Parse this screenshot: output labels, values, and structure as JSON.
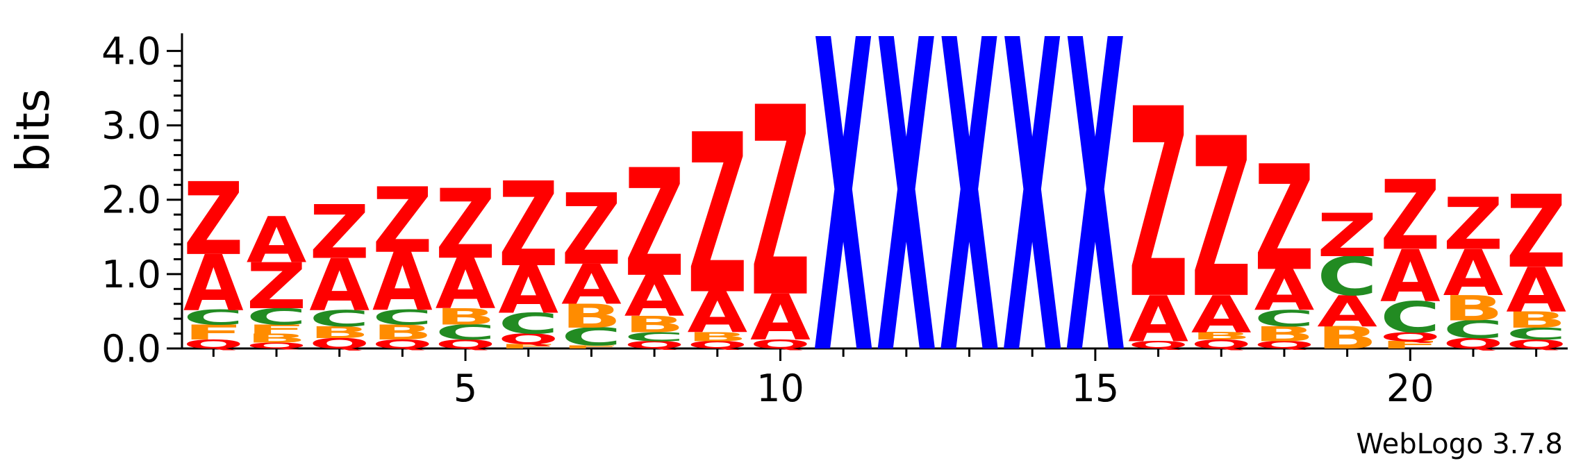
{
  "chart_data": {
    "type": "sequence-logo",
    "ylabel": "bits",
    "ylim": [
      0,
      4.2
    ],
    "yticks": [
      "0.0",
      "1.0",
      "2.0",
      "3.0",
      "4.0"
    ],
    "xticks": [
      5,
      10,
      15,
      20
    ],
    "footer": "WebLogo 3.7.8",
    "colors": {
      "Z": "#ff0000",
      "A": "#ff0000",
      "Q": "#ff0000",
      "X": "#0000ff",
      "C": "#228b22",
      "B": "#ff8c00",
      "F": "#ff8c00"
    },
    "positions": [
      {
        "pos": 1,
        "stack": [
          [
            "Q",
            0.12
          ],
          [
            "F",
            0.2
          ],
          [
            "C",
            0.2
          ],
          [
            "A",
            0.75
          ],
          [
            "Z",
            0.98
          ]
        ]
      },
      {
        "pos": 2,
        "stack": [
          [
            "Q",
            0.08
          ],
          [
            "B",
            0.12
          ],
          [
            "F",
            0.12
          ],
          [
            "C",
            0.22
          ],
          [
            "Z",
            0.62
          ],
          [
            "A",
            0.62
          ]
        ]
      },
      {
        "pos": 3,
        "stack": [
          [
            "Q",
            0.14
          ],
          [
            "B",
            0.16
          ],
          [
            "C",
            0.22
          ],
          [
            "A",
            0.7
          ],
          [
            "Z",
            0.72
          ]
        ]
      },
      {
        "pos": 4,
        "stack": [
          [
            "Q",
            0.12
          ],
          [
            "B",
            0.2
          ],
          [
            "C",
            0.2
          ],
          [
            "A",
            0.78
          ],
          [
            "Z",
            0.88
          ]
        ]
      },
      {
        "pos": 5,
        "stack": [
          [
            "Q",
            0.12
          ],
          [
            "C",
            0.2
          ],
          [
            "B",
            0.22
          ],
          [
            "A",
            0.68
          ],
          [
            "Z",
            0.94
          ]
        ]
      },
      {
        "pos": 6,
        "stack": [
          [
            "F",
            0.06
          ],
          [
            "Q",
            0.14
          ],
          [
            "C",
            0.28
          ],
          [
            "A",
            0.64
          ],
          [
            "Z",
            1.14
          ]
        ]
      },
      {
        "pos": 7,
        "stack": [
          [
            "F",
            0.04
          ],
          [
            "C",
            0.24
          ],
          [
            "B",
            0.32
          ],
          [
            "A",
            0.54
          ],
          [
            "Z",
            0.96
          ]
        ]
      },
      {
        "pos": 8,
        "stack": [
          [
            "Q",
            0.1
          ],
          [
            "C",
            0.12
          ],
          [
            "B",
            0.22
          ],
          [
            "A",
            0.55
          ],
          [
            "Z",
            1.45
          ]
        ]
      },
      {
        "pos": 9,
        "stack": [
          [
            "Q",
            0.1
          ],
          [
            "B",
            0.12
          ],
          [
            "A",
            0.55
          ],
          [
            "Z",
            2.15
          ]
        ]
      },
      {
        "pos": 10,
        "stack": [
          [
            "Q",
            0.12
          ],
          [
            "A",
            0.62
          ],
          [
            "Z",
            2.55
          ]
        ]
      },
      {
        "pos": 11,
        "stack": [
          [
            "X",
            4.2
          ]
        ]
      },
      {
        "pos": 12,
        "stack": [
          [
            "X",
            4.2
          ]
        ]
      },
      {
        "pos": 13,
        "stack": [
          [
            "X",
            4.2
          ]
        ]
      },
      {
        "pos": 14,
        "stack": [
          [
            "X",
            4.2
          ]
        ]
      },
      {
        "pos": 15,
        "stack": [
          [
            "X",
            4.2
          ]
        ]
      },
      {
        "pos": 16,
        "stack": [
          [
            "Q",
            0.1
          ],
          [
            "A",
            0.62
          ],
          [
            "Z",
            2.55
          ]
        ]
      },
      {
        "pos": 17,
        "stack": [
          [
            "Q",
            0.12
          ],
          [
            "B",
            0.1
          ],
          [
            "A",
            0.5
          ],
          [
            "Z",
            2.15
          ]
        ]
      },
      {
        "pos": 18,
        "stack": [
          [
            "Q",
            0.1
          ],
          [
            "B",
            0.2
          ],
          [
            "C",
            0.22
          ],
          [
            "A",
            0.55
          ],
          [
            "Z",
            1.42
          ]
        ]
      },
      {
        "pos": 19,
        "stack": [
          [
            "B",
            0.3
          ],
          [
            "A",
            0.42
          ],
          [
            "C",
            0.52
          ],
          [
            "Z",
            0.58
          ]
        ]
      },
      {
        "pos": 20,
        "stack": [
          [
            "F",
            0.1
          ],
          [
            "Q",
            0.12
          ],
          [
            "C",
            0.42
          ],
          [
            "A",
            0.7
          ],
          [
            "Z",
            0.94
          ]
        ]
      },
      {
        "pos": 21,
        "stack": [
          [
            "Q",
            0.14
          ],
          [
            "C",
            0.24
          ],
          [
            "B",
            0.34
          ],
          [
            "A",
            0.62
          ],
          [
            "Z",
            0.7
          ]
        ]
      },
      {
        "pos": 22,
        "stack": [
          [
            "Q",
            0.12
          ],
          [
            "C",
            0.16
          ],
          [
            "B",
            0.22
          ],
          [
            "A",
            0.6
          ],
          [
            "Z",
            0.98
          ]
        ]
      }
    ]
  }
}
